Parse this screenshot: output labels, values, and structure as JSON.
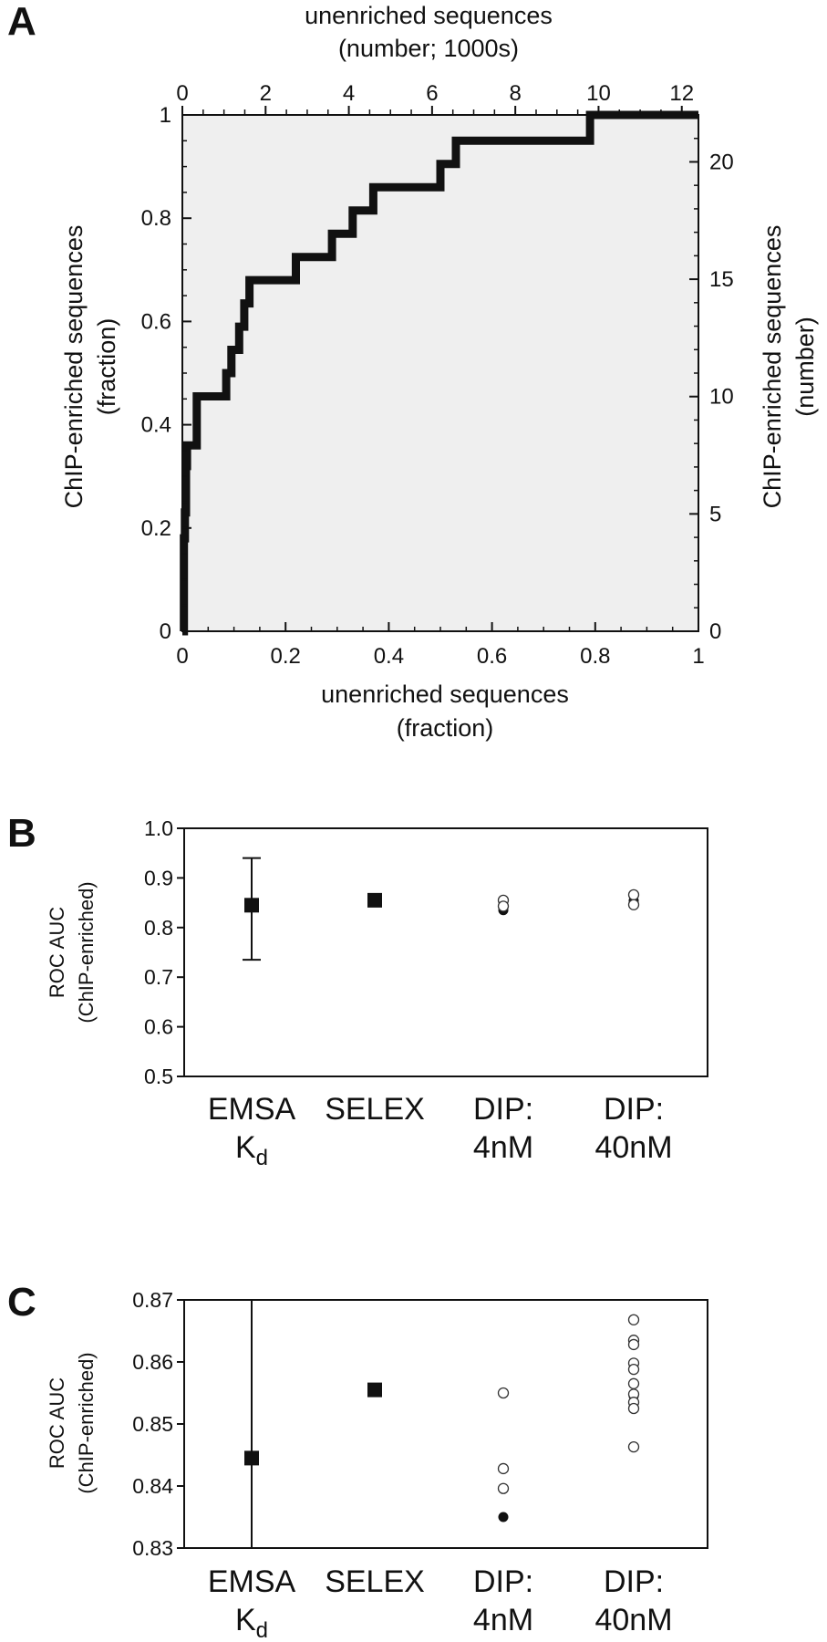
{
  "chart_data": [
    {
      "panel": "A",
      "type": "line",
      "xlabel_top": "unenriched sequences",
      "xlabel_top_sub": "(number; 1000s)",
      "xlabel": "unenriched sequences",
      "xlabel_sub": "(fraction)",
      "ylabel": "ChIP-enriched sequences",
      "ylabel_sub": "(fraction)",
      "ylabel_right": "ChIP-enriched sequences",
      "ylabel_right_sub": "(number)",
      "xlim": [
        0,
        1
      ],
      "ylim": [
        0,
        1
      ],
      "x_ticks": [
        "0",
        "0.2",
        "0.4",
        "0.6",
        "0.8",
        "1"
      ],
      "y_ticks": [
        "0",
        "0.2",
        "0.4",
        "0.6",
        "0.8",
        "1"
      ],
      "x_top_ticks": [
        "0",
        "2",
        "4",
        "6",
        "8",
        "10",
        "12"
      ],
      "x_top_lim": [
        0,
        12.4
      ],
      "y_right_ticks": [
        "0",
        "5",
        "10",
        "15",
        "20"
      ],
      "y_right_lim": [
        0,
        22
      ],
      "series": [
        {
          "x": [
            0,
            0.003,
            0.003,
            0.005,
            0.005,
            0.007,
            0.007,
            0.009,
            0.009,
            0.012,
            0.012,
            0.028,
            0.028,
            0.06,
            0.06,
            0.085,
            0.085,
            0.095,
            0.095,
            0.11,
            0.11,
            0.12,
            0.12,
            0.13,
            0.13,
            0.22,
            0.22,
            0.29,
            0.29,
            0.33,
            0.33,
            0.37,
            0.37,
            0.5,
            0.5,
            0.53,
            0.53,
            0.79,
            0.79,
            1.0
          ],
          "y": [
            0,
            0,
            0.18,
            0.18,
            0.23,
            0.23,
            0.32,
            0.32,
            0.36,
            0.36,
            0.36,
            0.36,
            0.455,
            0.455,
            0.455,
            0.455,
            0.5,
            0.5,
            0.545,
            0.545,
            0.59,
            0.59,
            0.635,
            0.635,
            0.68,
            0.68,
            0.725,
            0.725,
            0.77,
            0.77,
            0.815,
            0.815,
            0.86,
            0.86,
            0.905,
            0.905,
            0.95,
            0.95,
            1.0,
            1.0
          ]
        }
      ]
    },
    {
      "panel": "B",
      "type": "scatter",
      "ylabel": "ROC AUC",
      "ylabel_sub": "(ChIP-enriched)",
      "ylim": [
        0.5,
        1.0
      ],
      "y_ticks": [
        "0.5",
        "0.6",
        "0.7",
        "0.8",
        "0.9",
        "1.0"
      ],
      "categories": [
        {
          "line1": "EMSA",
          "line2": "K",
          "line2_sub": "d"
        },
        {
          "line1": "SELEX",
          "line2": "",
          "line2_sub": ""
        },
        {
          "line1": "DIP:",
          "line2": "4nM",
          "line2_sub": ""
        },
        {
          "line1": "DIP:",
          "line2": "40nM",
          "line2_sub": ""
        }
      ],
      "series": [
        {
          "name": "square",
          "points": [
            {
              "cat": 0,
              "y": 0.845,
              "err_low": 0.735,
              "err_high": 0.94
            },
            {
              "cat": 1,
              "y": 0.855
            }
          ]
        },
        {
          "name": "filled",
          "points": [
            {
              "cat": 2,
              "y": 0.835
            },
            {
              "cat": 3,
              "y": 0.854
            }
          ]
        },
        {
          "name": "open",
          "points": [
            {
              "cat": 2,
              "y": 0.855
            },
            {
              "cat": 2,
              "y": 0.843
            },
            {
              "cat": 3,
              "y": 0.866
            },
            {
              "cat": 3,
              "y": 0.846
            }
          ]
        }
      ]
    },
    {
      "panel": "C",
      "type": "scatter",
      "ylabel": "ROC AUC",
      "ylabel_sub": "(ChIP-enriched)",
      "ylim": [
        0.83,
        0.87
      ],
      "y_ticks": [
        "0.83",
        "0.84",
        "0.85",
        "0.86",
        "0.87"
      ],
      "categories": [
        {
          "line1": "EMSA",
          "line2": "K",
          "line2_sub": "d"
        },
        {
          "line1": "SELEX",
          "line2": "",
          "line2_sub": ""
        },
        {
          "line1": "DIP:",
          "line2": "4nM",
          "line2_sub": ""
        },
        {
          "line1": "DIP:",
          "line2": "40nM",
          "line2_sub": ""
        }
      ],
      "series": [
        {
          "name": "square",
          "points": [
            {
              "cat": 0,
              "y": 0.8445,
              "err_low": 0.735,
              "err_high": 0.94
            },
            {
              "cat": 1,
              "y": 0.8555
            }
          ]
        },
        {
          "name": "filled",
          "points": [
            {
              "cat": 2,
              "y": 0.835
            },
            {
              "cat": 3,
              "y": 0.8545
            }
          ]
        },
        {
          "name": "open",
          "points": [
            {
              "cat": 2,
              "y": 0.855
            },
            {
              "cat": 2,
              "y": 0.8428
            },
            {
              "cat": 2,
              "y": 0.8396
            },
            {
              "cat": 3,
              "y": 0.8668
            },
            {
              "cat": 3,
              "y": 0.8635
            },
            {
              "cat": 3,
              "y": 0.8628
            },
            {
              "cat": 3,
              "y": 0.8598
            },
            {
              "cat": 3,
              "y": 0.8588
            },
            {
              "cat": 3,
              "y": 0.8565
            },
            {
              "cat": 3,
              "y": 0.8548
            },
            {
              "cat": 3,
              "y": 0.8535
            },
            {
              "cat": 3,
              "y": 0.8525
            },
            {
              "cat": 3,
              "y": 0.8463
            }
          ]
        }
      ]
    }
  ],
  "panel_letters": [
    "A",
    "B",
    "C"
  ]
}
